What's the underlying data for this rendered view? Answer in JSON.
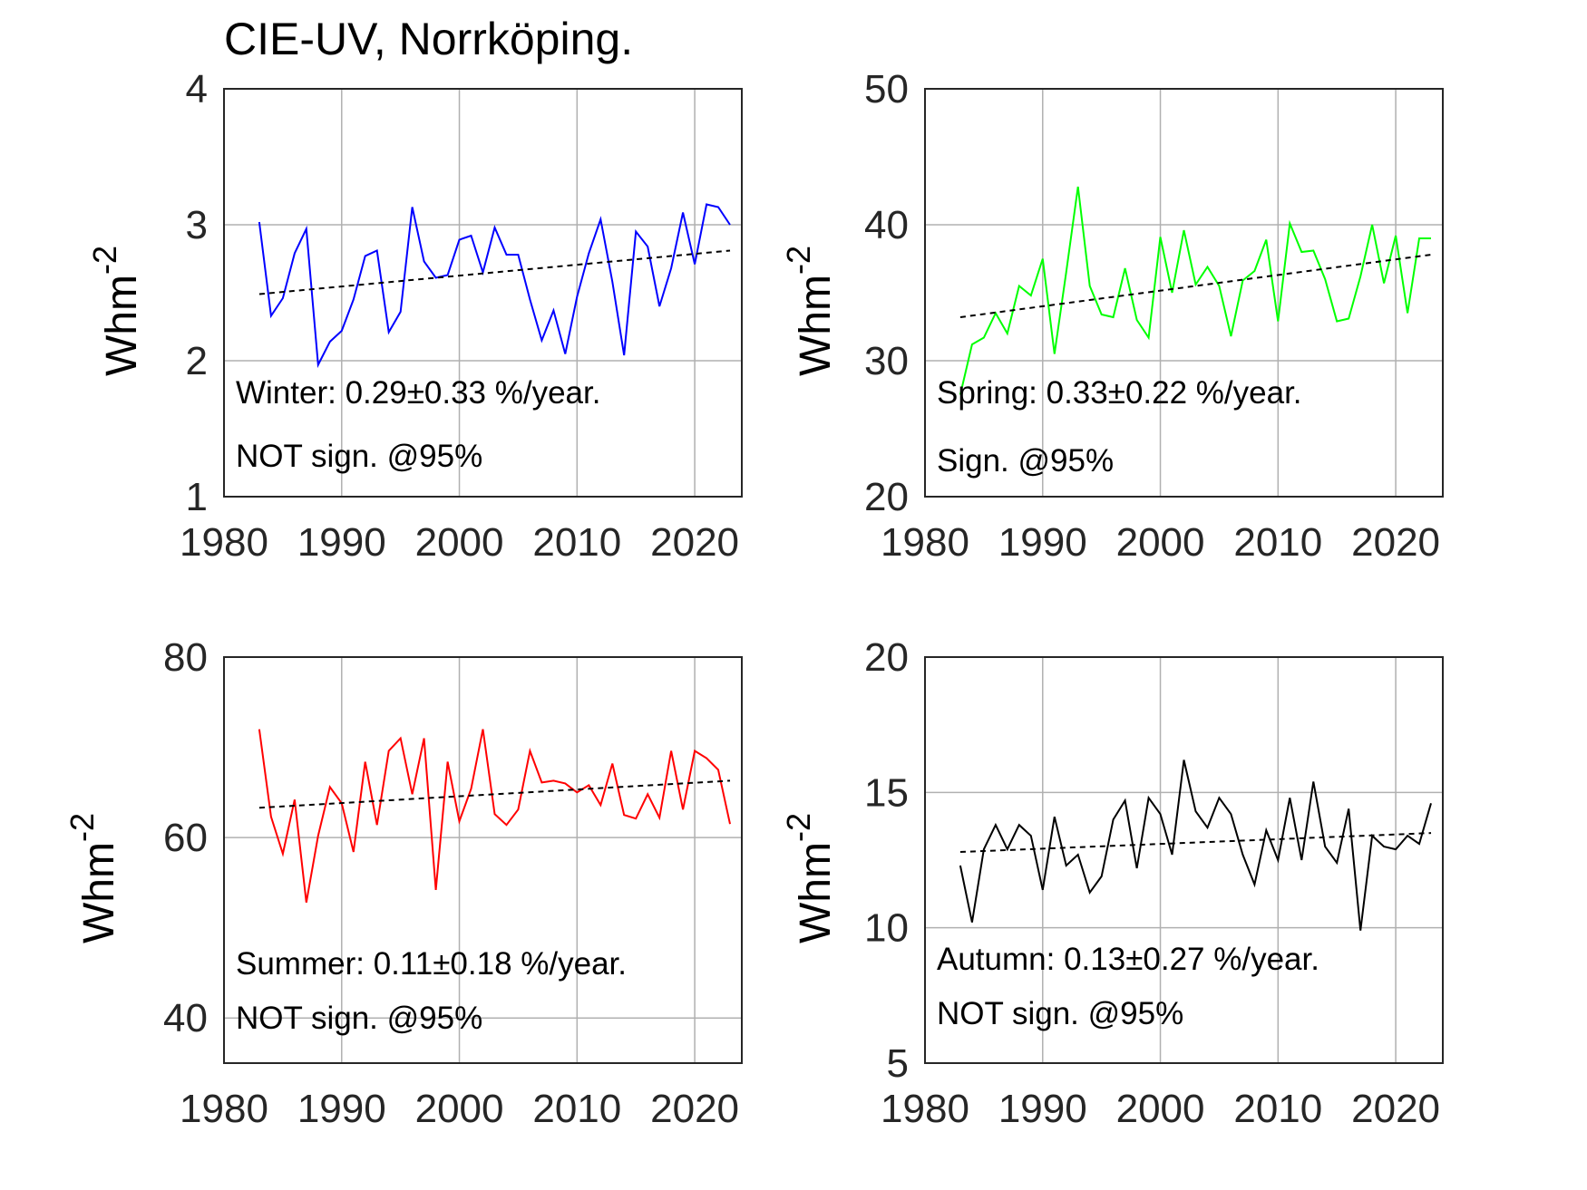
{
  "title": "CIE-UV, Norrköping.",
  "chart_data": [
    {
      "type": "line",
      "panel": "top-left",
      "ylabel_base": "Whm",
      "ylabel_sup": "-2",
      "xlim": [
        1980,
        2024
      ],
      "ylim": [
        1,
        4
      ],
      "xticks": [
        1980,
        1990,
        2000,
        2010,
        2020
      ],
      "yticks": [
        1,
        2,
        3,
        4
      ],
      "grid": true,
      "color": "#0000ff",
      "annotation": "Winter: 0.29±0.33 %/year.",
      "significance": "NOT sign. @95%",
      "x": [
        1983,
        1984,
        1985,
        1986,
        1987,
        1988,
        1989,
        1990,
        1991,
        1992,
        1993,
        1994,
        1995,
        1996,
        1997,
        1998,
        1999,
        2000,
        2001,
        2002,
        2003,
        2004,
        2005,
        2006,
        2007,
        2008,
        2009,
        2010,
        2011,
        2012,
        2013,
        2014,
        2015,
        2016,
        2017,
        2018,
        2019,
        2020,
        2021,
        2022,
        2023
      ],
      "values": [
        3.02,
        2.33,
        2.46,
        2.79,
        2.97,
        1.97,
        2.14,
        2.22,
        2.45,
        2.77,
        2.81,
        2.21,
        2.36,
        3.13,
        2.73,
        2.61,
        2.63,
        2.89,
        2.92,
        2.65,
        2.98,
        2.78,
        2.78,
        2.45,
        2.15,
        2.37,
        2.05,
        2.47,
        2.79,
        3.04,
        2.58,
        2.04,
        2.95,
        2.84,
        2.4,
        2.68,
        3.09,
        2.71,
        3.15,
        3.13,
        3.0
      ],
      "trend": [
        2.49,
        2.81
      ]
    },
    {
      "type": "line",
      "panel": "top-right",
      "ylabel_base": "Whm",
      "ylabel_sup": "-2",
      "xlim": [
        1980,
        2024
      ],
      "ylim": [
        20,
        50
      ],
      "xticks": [
        1980,
        1990,
        2000,
        2010,
        2020
      ],
      "yticks": [
        20,
        30,
        40,
        50
      ],
      "grid": true,
      "color": "#00ff00",
      "annotation": "Spring: 0.33±0.22 %/year.",
      "significance": "Sign. @95%",
      "x": [
        1983,
        1984,
        1985,
        1986,
        1987,
        1988,
        1989,
        1990,
        1991,
        1992,
        1993,
        1994,
        1995,
        1996,
        1997,
        1998,
        1999,
        2000,
        2001,
        2002,
        2003,
        2004,
        2005,
        2006,
        2007,
        2008,
        2009,
        2010,
        2011,
        2012,
        2013,
        2014,
        2015,
        2016,
        2017,
        2018,
        2019,
        2020,
        2021,
        2022,
        2023
      ],
      "values": [
        27.5,
        31.2,
        31.7,
        33.5,
        32.0,
        35.5,
        34.8,
        37.5,
        30.5,
        36.5,
        42.8,
        35.5,
        33.4,
        33.2,
        36.8,
        33.0,
        31.7,
        39.1,
        35.0,
        39.6,
        35.6,
        36.9,
        35.5,
        31.8,
        35.9,
        36.6,
        38.9,
        32.9,
        40.1,
        38.0,
        38.1,
        36.0,
        32.9,
        33.1,
        36.2,
        40.0,
        35.7,
        39.2,
        33.5,
        39.0,
        39.0
      ],
      "trend": [
        33.2,
        37.8
      ]
    },
    {
      "type": "line",
      "panel": "bottom-left",
      "ylabel_base": "Whm",
      "ylabel_sup": "-2",
      "xlim": [
        1980,
        2024
      ],
      "ylim": [
        35,
        80
      ],
      "xticks": [
        1980,
        1990,
        2000,
        2010,
        2020
      ],
      "yticks": [
        40,
        60,
        80
      ],
      "grid": true,
      "color": "#ff0000",
      "annotation": "Summer: 0.11±0.18 %/year.",
      "significance": "NOT sign. @95%",
      "x": [
        1983,
        1984,
        1985,
        1986,
        1987,
        1988,
        1989,
        1990,
        1991,
        1992,
        1993,
        1994,
        1995,
        1996,
        1997,
        1998,
        1999,
        2000,
        2001,
        2002,
        2003,
        2004,
        2005,
        2006,
        2007,
        2008,
        2009,
        2010,
        2011,
        2012,
        2013,
        2014,
        2015,
        2016,
        2017,
        2018,
        2019,
        2020,
        2021,
        2022,
        2023
      ],
      "values": [
        72.0,
        62.3,
        58.2,
        64.2,
        52.8,
        60.2,
        65.6,
        63.8,
        58.4,
        68.4,
        61.4,
        69.6,
        71.0,
        64.8,
        71.0,
        54.2,
        68.4,
        61.8,
        65.4,
        72.0,
        62.6,
        61.4,
        63.1,
        69.6,
        66.1,
        66.3,
        66.0,
        65.0,
        65.8,
        63.6,
        68.2,
        62.5,
        62.1,
        64.8,
        62.2,
        69.6,
        63.1,
        69.6,
        68.8,
        67.5,
        61.5
      ],
      "trend": [
        63.3,
        66.3
      ]
    },
    {
      "type": "line",
      "panel": "bottom-right",
      "ylabel_base": "Whm",
      "ylabel_sup": "-2",
      "xlim": [
        1980,
        2024
      ],
      "ylim": [
        5,
        20
      ],
      "xticks": [
        1980,
        1990,
        2000,
        2010,
        2020
      ],
      "yticks": [
        5,
        10,
        15,
        20
      ],
      "grid": true,
      "color": "#000000",
      "annotation": "Autumn: 0.13±0.27 %/year.",
      "significance": "NOT sign. @95%",
      "x": [
        1983,
        1984,
        1985,
        1986,
        1987,
        1988,
        1989,
        1990,
        1991,
        1992,
        1993,
        1994,
        1995,
        1996,
        1997,
        1998,
        1999,
        2000,
        2001,
        2002,
        2003,
        2004,
        2005,
        2006,
        2007,
        2008,
        2009,
        2010,
        2011,
        2012,
        2013,
        2014,
        2015,
        2016,
        2017,
        2018,
        2019,
        2020,
        2021,
        2022,
        2023
      ],
      "values": [
        12.3,
        10.2,
        12.9,
        13.8,
        12.9,
        13.8,
        13.4,
        11.4,
        14.1,
        12.3,
        12.7,
        11.3,
        11.9,
        14.0,
        14.7,
        12.2,
        14.8,
        14.2,
        12.7,
        16.2,
        14.3,
        13.7,
        14.8,
        14.2,
        12.7,
        11.6,
        13.6,
        12.5,
        14.8,
        12.5,
        15.4,
        13.0,
        12.4,
        14.4,
        9.9,
        13.4,
        13.0,
        12.9,
        13.4,
        13.1,
        14.6
      ],
      "trend": [
        12.8,
        13.5
      ]
    }
  ]
}
